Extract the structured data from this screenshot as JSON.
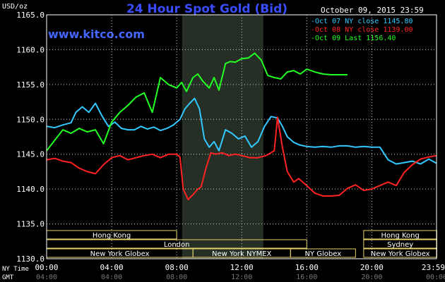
{
  "header": {
    "title": "24 Hour Spot Gold (Bid)",
    "units": "USD/oz",
    "site": "www.kitco.com",
    "date": "October 09, 2015 23:59"
  },
  "colors": {
    "background": "#000000",
    "title": "#3a4cff",
    "site": "#4466ff",
    "grid": "#ffffff",
    "frame": "#ffffff",
    "text": "#ffffff",
    "shade": "#262f26",
    "session_box": "#e6d26a"
  },
  "footer": {
    "row1_label": "NY Time",
    "row2_label": "GMT",
    "gmt_ticks": [
      "04:00",
      "08:00",
      "12:00",
      "16:00",
      "20:00",
      "00:00",
      "03:59"
    ]
  },
  "sessions": [
    {
      "name": "Hong Kong",
      "start": 0,
      "end": 8.0,
      "row": 0
    },
    {
      "name": "London",
      "start": 0,
      "end": 16.0,
      "row": 1
    },
    {
      "name": "New York Globex",
      "start": 0,
      "end": 9.0,
      "row": 2
    },
    {
      "name": "New York NYMEX",
      "start": 9.0,
      "end": 15.0,
      "row": 2
    },
    {
      "name": "NY Globex",
      "start": 15.0,
      "end": 19.0,
      "row": 2
    },
    {
      "name": "Hong Kong",
      "start": 19.5,
      "end": 24.0,
      "row": 0
    },
    {
      "name": "Sydney",
      "start": 19.5,
      "end": 24.0,
      "row": 1
    },
    {
      "name": "New York Globex",
      "start": 19.5,
      "end": 24.0,
      "row": 2
    }
  ],
  "chart_data": {
    "type": "line",
    "title": "24 Hour Spot Gold (Bid)",
    "ylabel": "USD/oz",
    "ylim": [
      1130,
      1165
    ],
    "yticks": [
      "1130.0",
      "1135.0",
      "1140.0",
      "1145.0",
      "1150.0",
      "1155.0",
      "1160.0",
      "1165.0"
    ],
    "ytick_values": [
      1130,
      1135,
      1140,
      1145,
      1150,
      1155,
      1160,
      1165
    ],
    "xlim": [
      0,
      23.98
    ],
    "xtick_values": [
      0,
      4,
      8,
      12,
      16,
      20,
      23.98
    ],
    "xticks": [
      "00:00",
      "04:00",
      "08:00",
      "12:00",
      "16:00",
      "20:00",
      "23:59"
    ],
    "shaded_hours": [
      8.33,
      13.33
    ],
    "grid": true,
    "legend": "top-right",
    "series": [
      {
        "name": "Oct 07 NY close 1145.80",
        "color": "#33c8ff",
        "x": [
          0,
          0.5,
          1.0,
          1.5,
          1.8,
          2.2,
          2.6,
          3.0,
          3.4,
          3.8,
          4.2,
          4.6,
          5.0,
          5.4,
          5.8,
          6.2,
          6.6,
          7.0,
          7.4,
          7.8,
          8.2,
          8.5,
          8.8,
          9.1,
          9.4,
          9.7,
          10.0,
          10.3,
          10.6,
          11.0,
          11.4,
          11.8,
          12.2,
          12.6,
          13.0,
          13.4,
          13.8,
          14.2,
          14.5,
          14.8,
          15.2,
          15.6,
          16.0,
          16.5,
          17.0,
          17.5,
          18.0,
          18.5,
          19.0,
          19.5,
          20.0,
          20.5,
          21.0,
          21.5,
          22.0,
          22.5,
          23.0,
          23.5,
          23.98
        ],
        "values": [
          1149.0,
          1148.8,
          1149.2,
          1149.5,
          1151.0,
          1151.8,
          1151.0,
          1152.3,
          1150.5,
          1149.0,
          1149.6,
          1148.7,
          1148.5,
          1148.5,
          1149.0,
          1148.6,
          1148.9,
          1148.4,
          1148.7,
          1149.2,
          1150.0,
          1151.5,
          1152.3,
          1153.0,
          1151.5,
          1147.2,
          1146.0,
          1146.8,
          1145.5,
          1148.5,
          1148.0,
          1147.2,
          1147.6,
          1146.0,
          1146.8,
          1149.0,
          1150.4,
          1150.2,
          1149.0,
          1147.5,
          1146.7,
          1146.3,
          1146.1,
          1146.0,
          1146.1,
          1146.0,
          1146.2,
          1146.2,
          1146.0,
          1146.1,
          1146.0,
          1146.0,
          1144.2,
          1143.6,
          1143.8,
          1144.0,
          1143.6,
          1144.3,
          1143.7
        ]
      },
      {
        "name": "Oct 08 NY close 1139.00",
        "color": "#ff2222",
        "x": [
          0,
          0.5,
          1.0,
          1.5,
          2.0,
          2.5,
          3.0,
          3.5,
          4.0,
          4.5,
          5.0,
          5.5,
          6.0,
          6.5,
          7.0,
          7.5,
          8.0,
          8.2,
          8.4,
          8.7,
          9.0,
          9.3,
          9.5,
          9.8,
          10.1,
          10.4,
          10.8,
          11.2,
          11.6,
          12.0,
          12.5,
          13.0,
          13.5,
          14.0,
          14.2,
          14.5,
          14.8,
          15.2,
          15.5,
          16.0,
          16.5,
          17.0,
          17.5,
          18.0,
          18.5,
          19.0,
          19.5,
          20.0,
          20.5,
          21.0,
          21.5,
          22.0,
          22.5,
          23.0,
          23.5,
          23.98
        ],
        "values": [
          1144.2,
          1144.4,
          1144.0,
          1143.8,
          1143.0,
          1142.5,
          1142.2,
          1143.5,
          1144.5,
          1144.8,
          1144.2,
          1144.5,
          1144.8,
          1145.0,
          1144.5,
          1145.0,
          1145.0,
          1144.6,
          1140.0,
          1138.5,
          1139.2,
          1140.0,
          1140.3,
          1143.0,
          1145.2,
          1145.0,
          1145.2,
          1144.8,
          1145.0,
          1144.8,
          1144.5,
          1144.5,
          1144.8,
          1145.5,
          1150.3,
          1146.0,
          1142.5,
          1141.0,
          1141.5,
          1140.5,
          1139.4,
          1139.0,
          1139.0,
          1139.1,
          1140.1,
          1140.6,
          1139.8,
          1140.0,
          1140.5,
          1141.0,
          1140.5,
          1142.4,
          1143.5,
          1144.3,
          1144.6,
          1144.8
        ]
      },
      {
        "name": "Oct 09 Last 1156.40",
        "color": "#22ff22",
        "x": [
          0,
          0.5,
          1.0,
          1.5,
          2.0,
          2.5,
          3.0,
          3.5,
          4.0,
          4.5,
          5.0,
          5.5,
          6.0,
          6.5,
          7.0,
          7.5,
          8.0,
          8.3,
          8.6,
          9.0,
          9.3,
          9.6,
          10.0,
          10.3,
          10.6,
          11.0,
          11.3,
          11.6,
          12.0,
          12.4,
          12.8,
          13.2,
          13.6,
          14.0,
          14.4,
          14.8,
          15.2,
          15.6,
          16.0,
          16.5,
          17.0,
          17.5,
          18.0,
          18.5
        ],
        "values": [
          1145.5,
          1147.0,
          1148.5,
          1148.0,
          1148.7,
          1148.2,
          1148.5,
          1146.5,
          1149.6,
          1151.0,
          1152.0,
          1153.2,
          1153.8,
          1151.0,
          1156.0,
          1155.0,
          1154.5,
          1155.3,
          1154.0,
          1156.0,
          1156.5,
          1155.5,
          1154.5,
          1156.0,
          1154.2,
          1158.0,
          1158.3,
          1158.2,
          1158.7,
          1158.8,
          1159.5,
          1158.5,
          1156.3,
          1156.0,
          1155.8,
          1156.8,
          1157.0,
          1156.5,
          1157.2,
          1156.8,
          1156.5,
          1156.4,
          1156.4,
          1156.4
        ]
      }
    ]
  }
}
